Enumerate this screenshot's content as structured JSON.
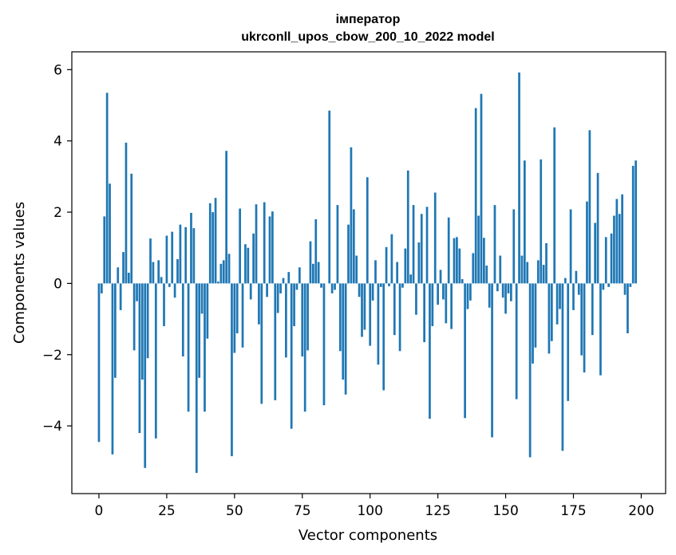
{
  "chart_data": {
    "type": "bar",
    "title": "імператор",
    "subtitle": "ukrconll_upos_cbow_200_10_2022 model",
    "xlabel": "Vector components",
    "ylabel": "Components values",
    "xlim": [
      -10,
      209
    ],
    "ylim": [
      -5.9,
      6.5
    ],
    "xticks": [
      0,
      25,
      50,
      75,
      100,
      125,
      150,
      175,
      200
    ],
    "yticks": [
      -4,
      -2,
      0,
      2,
      4,
      6
    ],
    "xtick_labels": [
      "0",
      "25",
      "50",
      "75",
      "100",
      "125",
      "150",
      "175",
      "200"
    ],
    "ytick_labels": [
      "−4",
      "−2",
      "0",
      "2",
      "4",
      "6"
    ],
    "bar_color": "#1f77b4",
    "values": [
      -4.45,
      -0.28,
      1.88,
      5.35,
      2.8,
      -4.8,
      -2.65,
      0.45,
      -0.75,
      0.88,
      3.95,
      0.3,
      3.08,
      -1.88,
      -0.5,
      -4.2,
      -2.7,
      -5.18,
      -2.1,
      1.26,
      0.6,
      -4.35,
      0.65,
      0.18,
      -1.2,
      1.34,
      -0.1,
      1.45,
      -0.4,
      0.68,
      1.65,
      -2.05,
      1.58,
      -3.6,
      1.98,
      1.55,
      -5.32,
      -2.65,
      -0.85,
      -3.6,
      -1.55,
      2.25,
      2.0,
      2.4,
      0.05,
      0.55,
      0.65,
      3.72,
      0.83,
      -4.85,
      -1.95,
      -1.4,
      2.1,
      -1.8,
      1.1,
      1.0,
      -0.45,
      1.4,
      2.22,
      -1.15,
      -3.38,
      2.28,
      -0.38,
      1.88,
      2.02,
      -3.28,
      -0.83,
      -0.28,
      0.15,
      -2.08,
      0.32,
      -4.08,
      -1.2,
      -0.18,
      0.45,
      -2.05,
      -3.6,
      -1.88,
      1.18,
      0.55,
      1.8,
      0.6,
      -0.12,
      -3.42,
      0.0,
      4.85,
      -0.28,
      -0.18,
      2.2,
      -1.9,
      -2.7,
      -3.12,
      1.65,
      3.82,
      2.08,
      0.78,
      -0.38,
      -1.5,
      -1.3,
      2.98,
      -1.75,
      -0.48,
      0.65,
      -2.28,
      -0.1,
      -3.0,
      1.02,
      -0.08,
      1.38,
      -1.45,
      0.6,
      -1.9,
      -0.12,
      0.98,
      3.17,
      0.25,
      2.2,
      -0.88,
      1.15,
      1.95,
      -1.65,
      2.15,
      -3.8,
      -1.2,
      2.55,
      -0.6,
      0.38,
      -0.45,
      -1.12,
      1.85,
      -1.28,
      1.27,
      1.3,
      0.98,
      0.12,
      -3.78,
      -0.72,
      -0.48,
      0.85,
      4.92,
      1.9,
      5.32,
      1.28,
      0.5,
      -0.68,
      -4.32,
      2.2,
      -0.22,
      0.78,
      -0.4,
      -0.85,
      -0.28,
      -0.5,
      2.08,
      -3.25,
      5.92,
      0.78,
      3.45,
      0.6,
      -4.88,
      -2.25,
      -1.8,
      0.65,
      3.48,
      0.52,
      1.13,
      -1.97,
      -1.62,
      4.38,
      -1.15,
      -0.72,
      -4.7,
      0.15,
      -3.3,
      2.08,
      -0.75,
      0.35,
      -0.32,
      -2.02,
      -2.5,
      2.3,
      4.3,
      -1.45,
      1.7,
      3.1,
      -2.58,
      -0.18,
      1.3,
      -0.1,
      1.4,
      1.9,
      2.37,
      1.95,
      2.5,
      -0.32,
      -1.4,
      -0.1,
      3.3,
      3.45
    ]
  }
}
